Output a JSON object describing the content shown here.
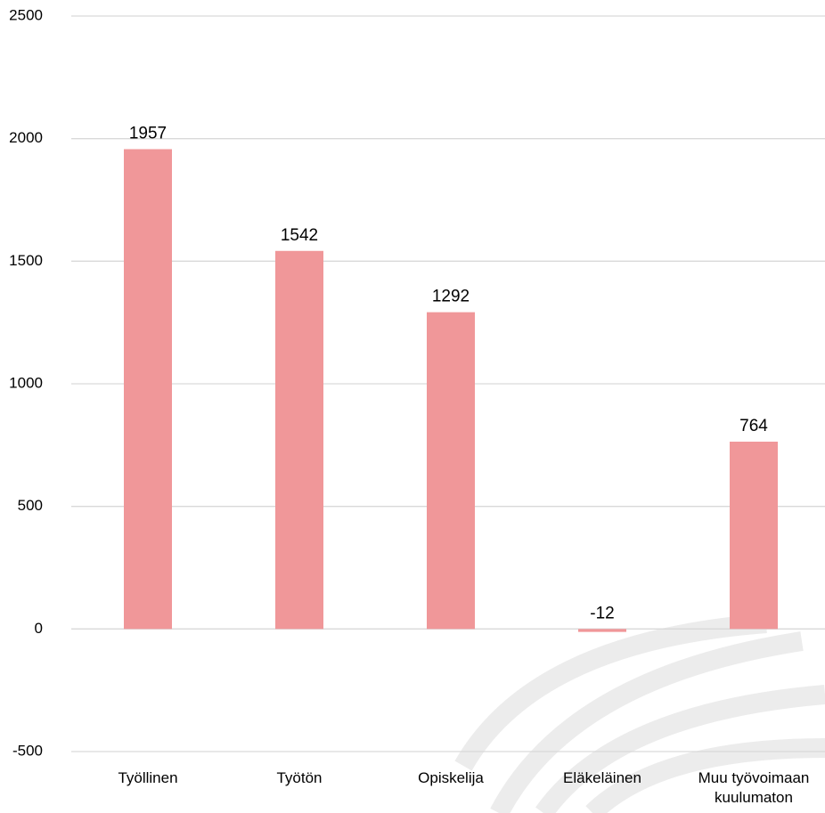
{
  "chart_data": {
    "type": "bar",
    "categories": [
      "Työllinen",
      "Työtön",
      "Opiskelija",
      "Eläkeläinen",
      "Muu työvoimaan kuulumaton"
    ],
    "values": [
      1957,
      1542,
      1292,
      -12,
      764
    ],
    "color": "#f09799",
    "ylim": [
      -500,
      2500
    ],
    "yticks": [
      -500,
      0,
      500,
      1000,
      1500,
      2000,
      2500
    ],
    "grid": true
  }
}
